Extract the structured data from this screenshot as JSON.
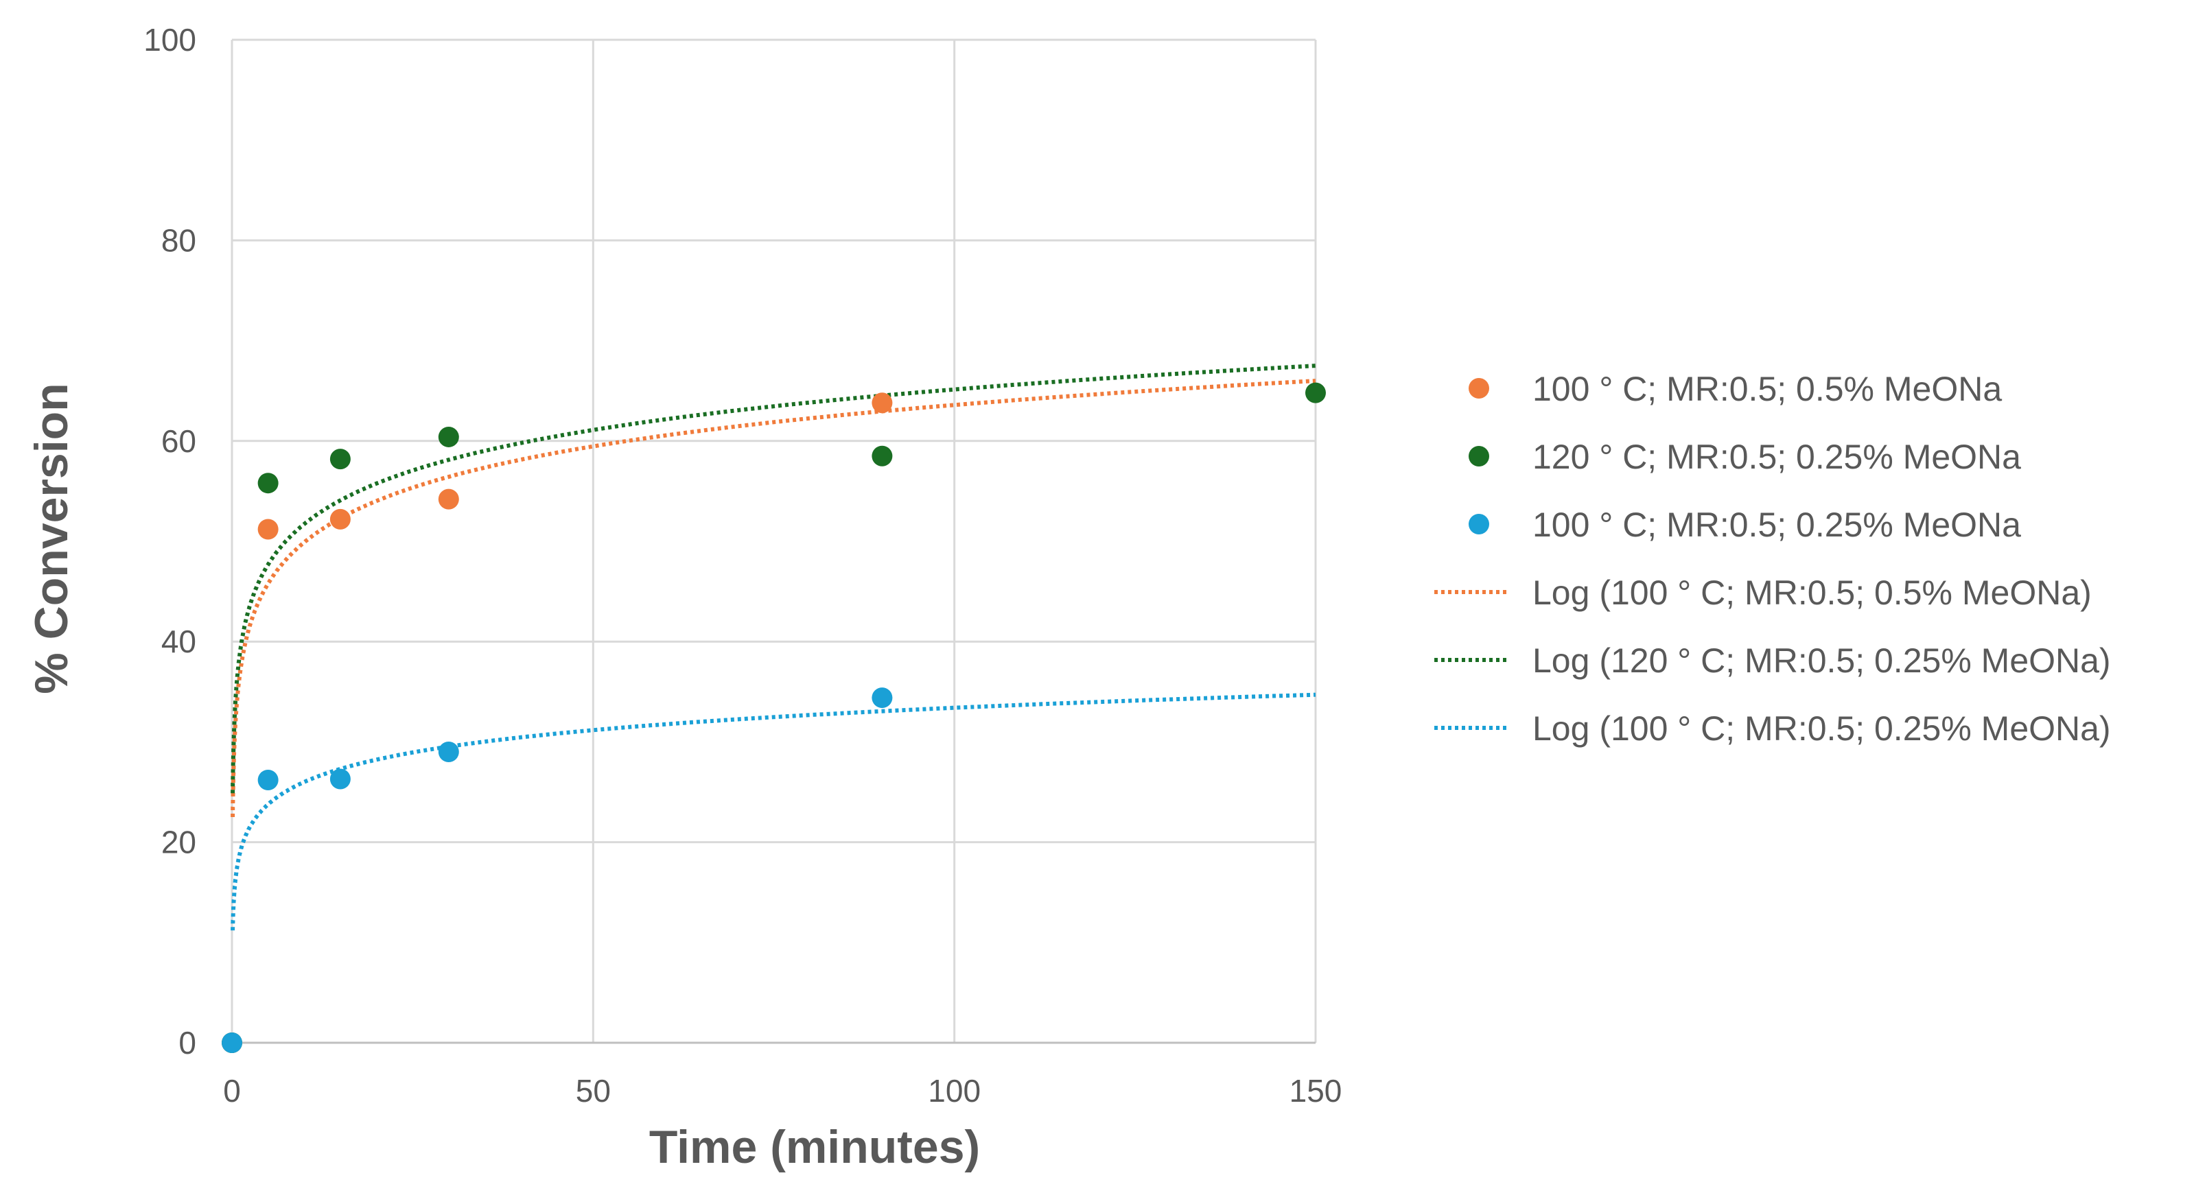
{
  "chart_data": {
    "type": "scatter",
    "xlabel": "Time (minutes)",
    "ylabel": "% Conversion",
    "xlim": [
      0,
      150
    ],
    "ylim": [
      0,
      100
    ],
    "xticks": [
      0,
      50,
      100,
      150
    ],
    "yticks": [
      0,
      20,
      40,
      60,
      80,
      100
    ],
    "grid": true,
    "legend_position": "right",
    "series": [
      {
        "name": "100 ° C; MR:0.5; 0.5% MeONa",
        "color": "#F07B3B",
        "x": [
          0,
          5,
          15,
          30,
          90
        ],
        "y": [
          0,
          51.2,
          52.2,
          54.2,
          63.8
        ]
      },
      {
        "name": "120 ° C; MR:0.5; 0.25% MeONa",
        "color": "#1A6E23",
        "x": [
          0,
          5,
          15,
          30,
          90,
          150
        ],
        "y": [
          0,
          55.8,
          58.2,
          60.4,
          58.5,
          64.8
        ]
      },
      {
        "name": "100 ° C; MR:0.5; 0.25% MeONa",
        "color": "#1AA0D6",
        "x": [
          0,
          5,
          15,
          30,
          90
        ],
        "y": [
          0,
          26.2,
          26.3,
          29.0,
          34.4
        ]
      }
    ],
    "trendlines": [
      {
        "name": "Log (100 ° C; MR:0.5; 0.5% MeONa)",
        "type": "logarithmic",
        "color": "#F07B3B",
        "x_range": [
          0.1,
          150
        ],
        "y_at_x1": 36.2,
        "y_at_x150": 66.0
      },
      {
        "name": "Log (120 ° C; MR:0.5; 0.25% MeONa)",
        "type": "logarithmic",
        "color": "#1A6E23",
        "x_range": [
          0.1,
          150
        ],
        "y_at_x1": 38.3,
        "y_at_x150": 67.5
      },
      {
        "name": "Log (100 ° C; MR:0.5; 0.25% MeONa)",
        "type": "logarithmic",
        "color": "#1AA0D6",
        "x_range": [
          0.1,
          150
        ],
        "y_at_x1": 18.6,
        "y_at_x150": 34.7
      }
    ]
  }
}
